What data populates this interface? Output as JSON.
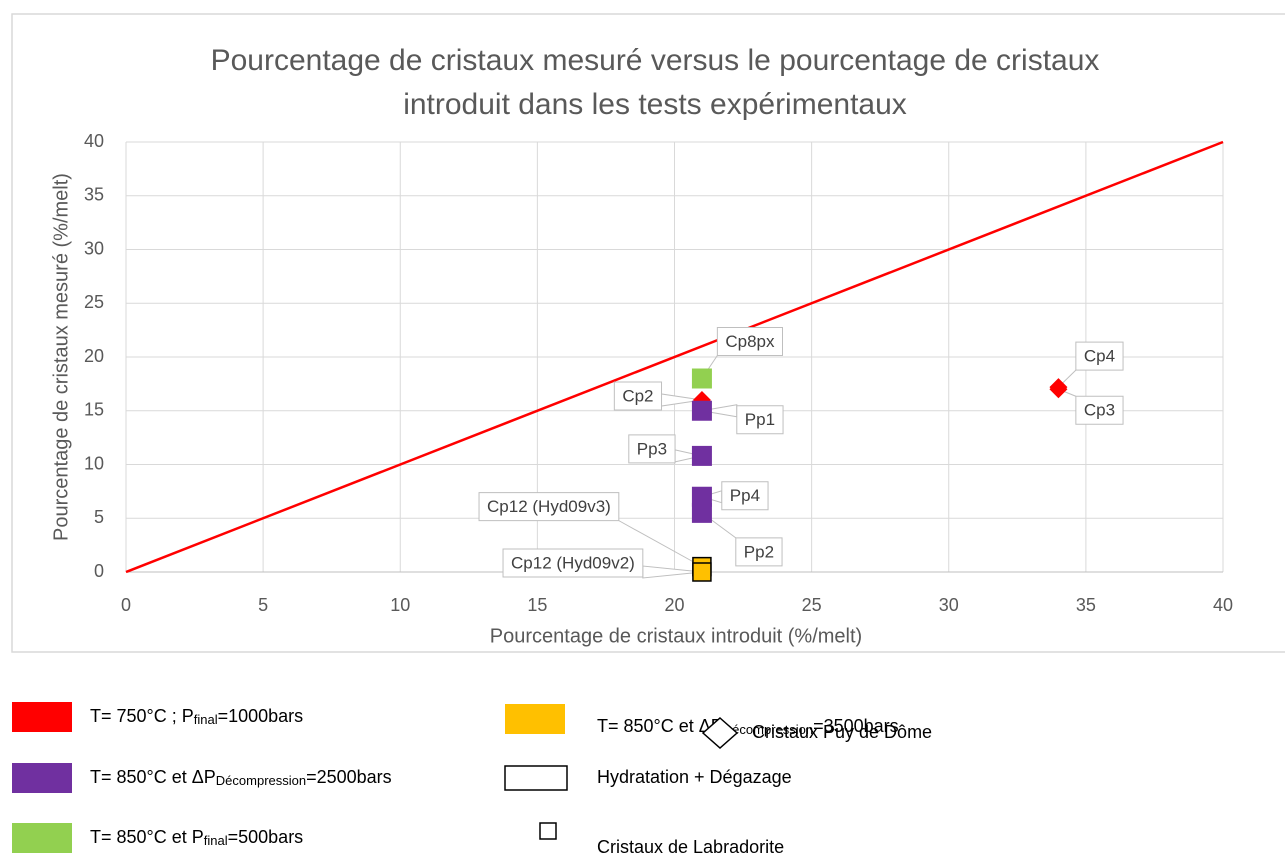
{
  "chart_data": {
    "type": "scatter",
    "title": [
      "Pourcentage de cristaux mesuré versus le pourcentage de cristaux",
      "introduit dans les tests expérimentaux"
    ],
    "x_label": "Pourcentage de cristaux introduit (%/melt)",
    "y_label": "Pourcentage de cristaux mesuré (%/melt)",
    "xlim": [
      0,
      40
    ],
    "xticks": [
      0,
      5,
      10,
      15,
      20,
      25,
      30,
      35,
      40
    ],
    "ylim": [
      0,
      40
    ],
    "yticks": [
      0,
      5,
      10,
      15,
      20,
      25,
      30,
      35,
      40
    ],
    "grid": true,
    "line": {
      "x": [
        0,
        40
      ],
      "y": [
        0,
        40
      ],
      "color": "#ff0000"
    },
    "points": [
      {
        "label": "Cp8px",
        "x": 21,
        "y": 18,
        "color": "#92d050",
        "marker": "square"
      },
      {
        "label": "Cp2",
        "x": 21,
        "y": 16,
        "color": "#ff0000",
        "marker": "diamond"
      },
      {
        "label": "Pp1",
        "x": 21,
        "y": 15,
        "color": "#7030a0",
        "marker": "square"
      },
      {
        "label": "Pp3",
        "x": 21,
        "y": 10.8,
        "color": "#7030a0",
        "marker": "square"
      },
      {
        "label": "Pp4",
        "x": 21,
        "y": 7,
        "color": "#7030a0",
        "marker": "square"
      },
      {
        "label": "Pp2",
        "x": 21,
        "y": 5.5,
        "color": "#7030a0",
        "marker": "square"
      },
      {
        "label": "Cp12 (Hyd09v3)",
        "x": 21,
        "y": 0.5,
        "color": "#ffc000",
        "marker": "square-outline"
      },
      {
        "label": "Cp12 (Hyd09v2)",
        "x": 21,
        "y": 0,
        "color": "#ffc000",
        "marker": "square-outline"
      },
      {
        "label": "Cp4",
        "x": 34,
        "y": 17.2,
        "color": "#ff0000",
        "marker": "diamond"
      },
      {
        "label": "Cp3",
        "x": 34,
        "y": 17,
        "color": "#ff0000",
        "marker": "diamond"
      }
    ]
  },
  "legend": [
    {
      "swatch": "rect",
      "color": "#ff0000",
      "text": [
        "T= 750°C ; P",
        "final",
        "=1000bars"
      ]
    },
    {
      "swatch": "rect",
      "color": "#7030a0",
      "text": [
        "T= 850°C et ΔP",
        "Décompression",
        "=2500bars"
      ]
    },
    {
      "swatch": "rect",
      "color": "#92d050",
      "text": [
        "T= 850°C et P",
        "final",
        "=500bars"
      ]
    },
    {
      "swatch": "rect",
      "color": "#ffc000",
      "text": [
        "T= 850°C et ΔP",
        "Décompression",
        "=3500bars"
      ]
    },
    {
      "swatch": "outline",
      "color": "#000000",
      "text": [
        "Hydratation + Dégazage"
      ]
    },
    {
      "swatch": "small-square",
      "color": "#000000",
      "text": [
        "Cristaux de Labradorite"
      ]
    },
    {
      "swatch": "diamond",
      "color": "#000000",
      "text": [
        "Cristaux Puy de Dôme"
      ]
    }
  ]
}
